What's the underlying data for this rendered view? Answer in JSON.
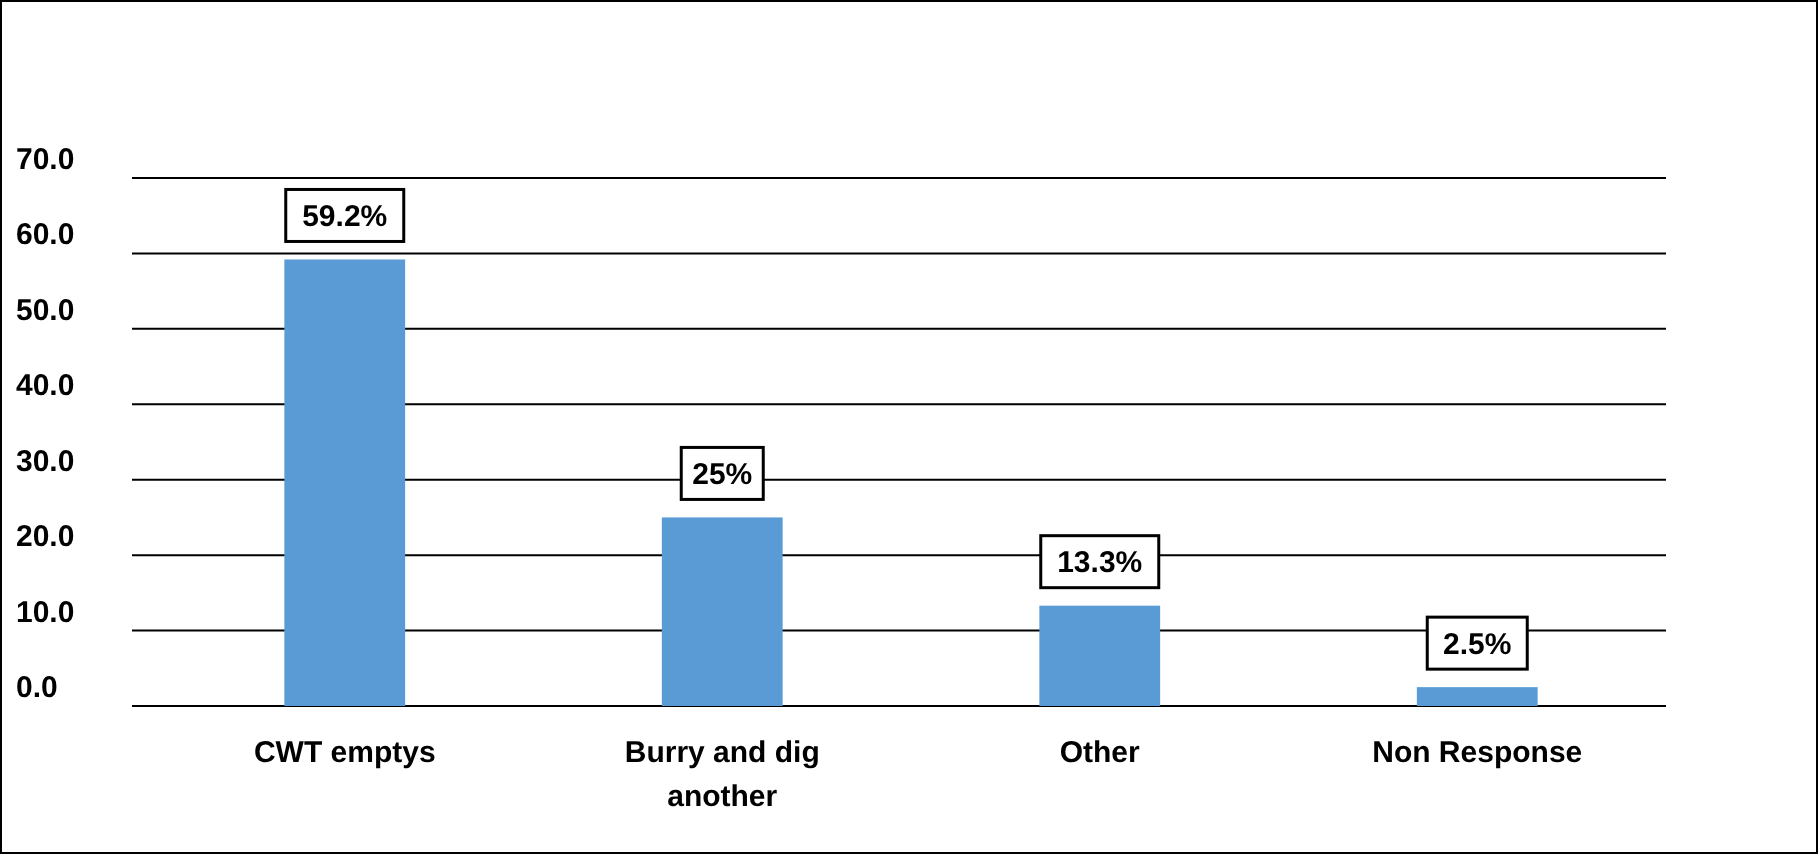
{
  "chart_data": {
    "type": "bar",
    "categories": [
      "CWT emptys",
      "Burry and dig another",
      "Other",
      "Non Response"
    ],
    "values": [
      59.2,
      25,
      13.3,
      2.5
    ],
    "color": "#5b9bd5",
    "value_labels": [
      "59.2%",
      "25%",
      "13.3%",
      "2.5%"
    ],
    "ylim": [
      0,
      70
    ],
    "yticks": [
      {
        "value": 0,
        "label": "0.0"
      },
      {
        "value": 10,
        "label": "10.0"
      },
      {
        "value": 20,
        "label": "20.0"
      },
      {
        "value": 30,
        "label": "30.0"
      },
      {
        "value": 40,
        "label": "40.0"
      },
      {
        "value": 50,
        "label": "50.0"
      },
      {
        "value": 60,
        "label": "60.0"
      },
      {
        "value": 70,
        "label": "70.0"
      }
    ],
    "grid": "y"
  }
}
